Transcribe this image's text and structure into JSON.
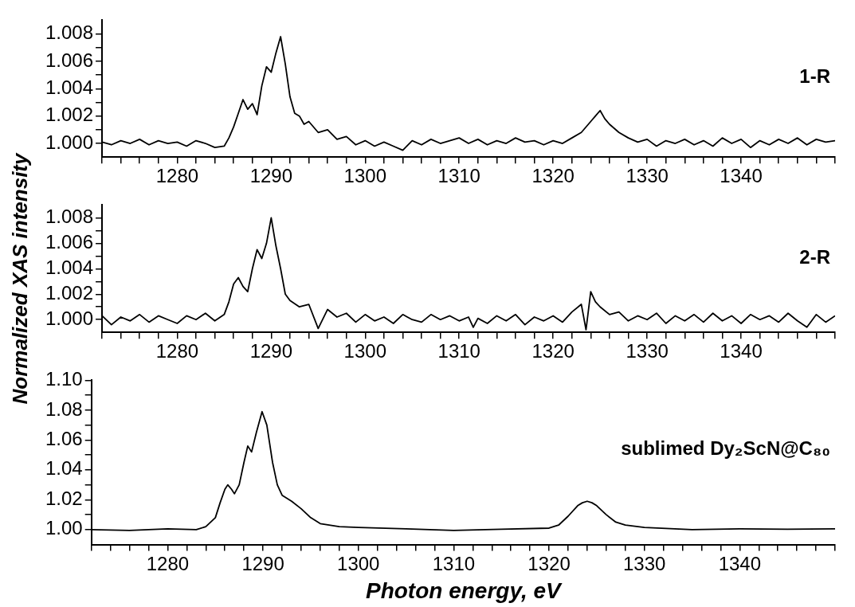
{
  "chart_data": [
    {
      "type": "line",
      "marker": "none",
      "annotations": [
        "1-R"
      ],
      "xlim": [
        1272,
        1350
      ],
      "xticks": [
        {
          "value": 1272,
          "label": null
        },
        {
          "value": 1274,
          "label": null
        },
        {
          "value": 1276,
          "label": null
        },
        {
          "value": 1278,
          "label": null
        },
        1280,
        {
          "value": 1282,
          "label": null
        },
        {
          "value": 1284,
          "label": null
        },
        {
          "value": 1286,
          "label": null
        },
        {
          "value": 1288,
          "label": null
        },
        1290,
        {
          "value": 1292,
          "label": null
        },
        {
          "value": 1294,
          "label": null
        },
        {
          "value": 1296,
          "label": null
        },
        {
          "value": 1298,
          "label": null
        },
        1300,
        {
          "value": 1302,
          "label": null
        },
        {
          "value": 1304,
          "label": null
        },
        {
          "value": 1306,
          "label": null
        },
        {
          "value": 1308,
          "label": null
        },
        1310,
        {
          "value": 1312,
          "label": null
        },
        {
          "value": 1314,
          "label": null
        },
        {
          "value": 1316,
          "label": null
        },
        {
          "value": 1318,
          "label": null
        },
        1320,
        {
          "value": 1322,
          "label": null
        },
        {
          "value": 1324,
          "label": null
        },
        {
          "value": 1326,
          "label": null
        },
        {
          "value": 1328,
          "label": null
        },
        1330,
        {
          "value": 1332,
          "label": null
        },
        {
          "value": 1334,
          "label": null
        },
        {
          "value": 1336,
          "label": null
        },
        {
          "value": 1338,
          "label": null
        },
        1340,
        {
          "value": 1342,
          "label": null
        },
        {
          "value": 1344,
          "label": null
        },
        {
          "value": 1346,
          "label": null
        },
        {
          "value": 1348,
          "label": null
        },
        {
          "value": 1350,
          "label": null
        }
      ],
      "ylim": [
        0.999,
        1.009
      ],
      "yticks": [
        {
          "value": 1.0,
          "label": "1.000"
        },
        {
          "value": 1.001,
          "label": null
        },
        {
          "value": 1.002,
          "label": "1.002"
        },
        {
          "value": 1.003,
          "label": null
        },
        {
          "value": 1.004,
          "label": "1.004"
        },
        {
          "value": 1.005,
          "label": null
        },
        {
          "value": 1.006,
          "label": "1.006"
        },
        {
          "value": 1.007,
          "label": null
        },
        {
          "value": 1.008,
          "label": "1.008"
        }
      ],
      "x": [
        1272,
        1273,
        1274,
        1275,
        1276,
        1277,
        1278,
        1279,
        1280,
        1281,
        1282,
        1283,
        1284,
        1285,
        1285.5,
        1286,
        1286.5,
        1287,
        1287.5,
        1288,
        1288.5,
        1289,
        1289.5,
        1290,
        1290.5,
        1291,
        1291.5,
        1292,
        1292.5,
        1293,
        1293.5,
        1294,
        1295,
        1296,
        1297,
        1298,
        1299,
        1300,
        1301,
        1302,
        1303,
        1304,
        1305,
        1306,
        1307,
        1308,
        1309,
        1310,
        1311,
        1312,
        1313,
        1314,
        1315,
        1316,
        1317,
        1318,
        1319,
        1320,
        1321,
        1322,
        1323,
        1324,
        1324.5,
        1325,
        1325.5,
        1326,
        1327,
        1328,
        1329,
        1330,
        1331,
        1332,
        1333,
        1334,
        1335,
        1336,
        1337,
        1338,
        1339,
        1340,
        1341,
        1342,
        1343,
        1344,
        1345,
        1346,
        1347,
        1348,
        1349,
        1350
      ],
      "series": [
        {
          "color": "#000000",
          "values": [
            1.0001,
            0.9999,
            1.0002,
            1.0,
            1.0003,
            0.9999,
            1.0002,
            1.0,
            1.0001,
            0.9998,
            1.0002,
            1.0,
            0.9997,
            0.9998,
            1.0004,
            1.0012,
            1.0022,
            1.0032,
            1.0025,
            1.0029,
            1.0021,
            1.0042,
            1.0056,
            1.0052,
            1.0066,
            1.0078,
            1.0058,
            1.0034,
            1.0022,
            1.002,
            1.0014,
            1.0016,
            1.0008,
            1.001,
            1.0003,
            1.0005,
            0.9999,
            1.0002,
            0.9998,
            1.0001,
            0.9998,
            0.9995,
            1.0002,
            0.9999,
            1.0003,
            1.0,
            1.0002,
            1.0004,
            1.0,
            1.0003,
            0.9999,
            1.0002,
            1.0,
            1.0004,
            1.0001,
            1.0002,
            0.9999,
            1.0002,
            1.0,
            1.0004,
            1.0008,
            1.0016,
            1.002,
            1.0024,
            1.0018,
            1.0014,
            1.0008,
            1.0004,
            1.0001,
            1.0003,
            0.9998,
            1.0002,
            1.0,
            1.0003,
            0.9999,
            1.0002,
            0.9998,
            1.0004,
            1.0,
            1.0003,
            0.9997,
            1.0002,
            0.9999,
            1.0003,
            1.0,
            1.0004,
            0.9999,
            1.0003,
            1.0001,
            1.0002
          ]
        }
      ]
    },
    {
      "type": "line",
      "marker": "none",
      "annotations": [
        "2-R"
      ],
      "ylabel": "Normalized XAS intensity",
      "xlim": [
        1272,
        1350
      ],
      "xticks": [
        {
          "value": 1272,
          "label": null
        },
        {
          "value": 1274,
          "label": null
        },
        {
          "value": 1276,
          "label": null
        },
        {
          "value": 1278,
          "label": null
        },
        1280,
        {
          "value": 1282,
          "label": null
        },
        {
          "value": 1284,
          "label": null
        },
        {
          "value": 1286,
          "label": null
        },
        {
          "value": 1288,
          "label": null
        },
        1290,
        {
          "value": 1292,
          "label": null
        },
        {
          "value": 1294,
          "label": null
        },
        {
          "value": 1296,
          "label": null
        },
        {
          "value": 1298,
          "label": null
        },
        1300,
        {
          "value": 1302,
          "label": null
        },
        {
          "value": 1304,
          "label": null
        },
        {
          "value": 1306,
          "label": null
        },
        {
          "value": 1308,
          "label": null
        },
        1310,
        {
          "value": 1312,
          "label": null
        },
        {
          "value": 1314,
          "label": null
        },
        {
          "value": 1316,
          "label": null
        },
        {
          "value": 1318,
          "label": null
        },
        1320,
        {
          "value": 1322,
          "label": null
        },
        {
          "value": 1324,
          "label": null
        },
        {
          "value": 1326,
          "label": null
        },
        {
          "value": 1328,
          "label": null
        },
        1330,
        {
          "value": 1332,
          "label": null
        },
        {
          "value": 1334,
          "label": null
        },
        {
          "value": 1336,
          "label": null
        },
        {
          "value": 1338,
          "label": null
        },
        1340,
        {
          "value": 1342,
          "label": null
        },
        {
          "value": 1344,
          "label": null
        },
        {
          "value": 1346,
          "label": null
        },
        {
          "value": 1348,
          "label": null
        },
        {
          "value": 1350,
          "label": null
        }
      ],
      "ylim": [
        0.999,
        1.009
      ],
      "yticks": [
        {
          "value": 1.0,
          "label": "1.000"
        },
        {
          "value": 1.001,
          "label": null
        },
        {
          "value": 1.002,
          "label": "1.002"
        },
        {
          "value": 1.003,
          "label": null
        },
        {
          "value": 1.004,
          "label": "1.004"
        },
        {
          "value": 1.005,
          "label": null
        },
        {
          "value": 1.006,
          "label": "1.006"
        },
        {
          "value": 1.007,
          "label": null
        },
        {
          "value": 1.008,
          "label": "1.008"
        }
      ],
      "x": [
        1272,
        1273,
        1274,
        1275,
        1276,
        1277,
        1278,
        1279,
        1280,
        1281,
        1282,
        1283,
        1284,
        1285,
        1285.5,
        1286,
        1286.5,
        1287,
        1287.5,
        1288,
        1288.5,
        1289,
        1289.5,
        1290,
        1290.5,
        1291,
        1291.5,
        1292,
        1293,
        1294,
        1295,
        1296,
        1297,
        1298,
        1299,
        1300,
        1301,
        1302,
        1303,
        1304,
        1305,
        1306,
        1307,
        1308,
        1309,
        1310,
        1311,
        1311.5,
        1312,
        1313,
        1314,
        1315,
        1316,
        1317,
        1318,
        1319,
        1320,
        1321,
        1322,
        1323,
        1323.5,
        1324,
        1324.5,
        1325,
        1326,
        1327,
        1328,
        1329,
        1330,
        1331,
        1332,
        1333,
        1334,
        1335,
        1336,
        1337,
        1338,
        1339,
        1340,
        1341,
        1342,
        1343,
        1344,
        1345,
        1346,
        1347,
        1348,
        1349,
        1350
      ],
      "series": [
        {
          "color": "#000000",
          "values": [
            1.0003,
            0.9996,
            1.0002,
            0.9999,
            1.0004,
            0.9998,
            1.0003,
            1.0,
            0.9997,
            1.0003,
            1.0,
            1.0005,
            0.9999,
            1.0004,
            1.0014,
            1.0028,
            1.0033,
            1.0026,
            1.0022,
            1.004,
            1.0055,
            1.0048,
            1.006,
            1.008,
            1.0058,
            1.004,
            1.002,
            1.0015,
            1.001,
            1.0012,
            0.9993,
            1.0008,
            1.0002,
            1.0005,
            0.9998,
            1.0004,
            0.9999,
            1.0002,
            0.9997,
            1.0004,
            1.0,
            0.9998,
            1.0004,
            1.0,
            1.0003,
            0.9999,
            1.0002,
            0.9994,
            1.0001,
            0.9997,
            1.0003,
            0.9999,
            1.0004,
            0.9996,
            1.0002,
            0.9999,
            1.0003,
            0.9998,
            1.0006,
            1.0012,
            0.9992,
            1.0022,
            1.0014,
            1.001,
            1.0004,
            1.0006,
            0.9999,
            1.0003,
            1.0,
            1.0005,
            0.9997,
            1.0003,
            0.9999,
            1.0004,
            0.9998,
            1.0005,
            0.9999,
            1.0003,
            0.9997,
            1.0004,
            1.0,
            1.0003,
            0.9998,
            1.0005,
            0.9999,
            0.9994,
            1.0004,
            0.9998,
            1.0003
          ]
        }
      ]
    },
    {
      "type": "line",
      "marker": "none",
      "annotations": [
        "sublimed Dy₂ScN@C₈₀"
      ],
      "xlabel": "Photon energy, eV",
      "xlim": [
        1272,
        1350
      ],
      "xticks": [
        {
          "value": 1272,
          "label": null
        },
        {
          "value": 1274,
          "label": null
        },
        {
          "value": 1276,
          "label": null
        },
        {
          "value": 1278,
          "label": null
        },
        1280,
        {
          "value": 1282,
          "label": null
        },
        {
          "value": 1284,
          "label": null
        },
        {
          "value": 1286,
          "label": null
        },
        {
          "value": 1288,
          "label": null
        },
        1290,
        {
          "value": 1292,
          "label": null
        },
        {
          "value": 1294,
          "label": null
        },
        {
          "value": 1296,
          "label": null
        },
        {
          "value": 1298,
          "label": null
        },
        1300,
        {
          "value": 1302,
          "label": null
        },
        {
          "value": 1304,
          "label": null
        },
        {
          "value": 1306,
          "label": null
        },
        {
          "value": 1308,
          "label": null
        },
        1310,
        {
          "value": 1312,
          "label": null
        },
        {
          "value": 1314,
          "label": null
        },
        {
          "value": 1316,
          "label": null
        },
        {
          "value": 1318,
          "label": null
        },
        1320,
        {
          "value": 1322,
          "label": null
        },
        {
          "value": 1324,
          "label": null
        },
        {
          "value": 1326,
          "label": null
        },
        {
          "value": 1328,
          "label": null
        },
        1330,
        {
          "value": 1332,
          "label": null
        },
        {
          "value": 1334,
          "label": null
        },
        {
          "value": 1336,
          "label": null
        },
        {
          "value": 1338,
          "label": null
        },
        1340,
        {
          "value": 1342,
          "label": null
        },
        {
          "value": 1344,
          "label": null
        },
        {
          "value": 1346,
          "label": null
        },
        {
          "value": 1348,
          "label": null
        },
        {
          "value": 1350,
          "label": null
        }
      ],
      "ylim": [
        0.99,
        1.1
      ],
      "yticks": [
        {
          "value": 1.0,
          "label": "1.00"
        },
        {
          "value": 1.01,
          "label": null
        },
        {
          "value": 1.02,
          "label": "1.02"
        },
        {
          "value": 1.03,
          "label": null
        },
        {
          "value": 1.04,
          "label": "1.04"
        },
        {
          "value": 1.05,
          "label": null
        },
        {
          "value": 1.06,
          "label": "1.06"
        },
        {
          "value": 1.07,
          "label": null
        },
        {
          "value": 1.08,
          "label": "1.08"
        },
        {
          "value": 1.09,
          "label": null
        },
        {
          "value": 1.1,
          "label": "1.10"
        }
      ],
      "x": [
        1272,
        1276,
        1280,
        1283,
        1284,
        1285,
        1285.5,
        1286,
        1286.3,
        1286.7,
        1287,
        1287.5,
        1288,
        1288.4,
        1288.8,
        1289.3,
        1289.9,
        1290.4,
        1291,
        1291.5,
        1292,
        1293,
        1294,
        1295,
        1296,
        1298,
        1300,
        1305,
        1310,
        1315,
        1320,
        1321,
        1322,
        1323,
        1323.5,
        1324,
        1324.5,
        1325,
        1326,
        1327,
        1328,
        1330,
        1335,
        1340,
        1345,
        1350
      ],
      "series": [
        {
          "color": "#000000",
          "values": [
            1.0,
            0.9995,
            1.0005,
            1.0,
            1.002,
            1.008,
            1.018,
            1.027,
            1.03,
            1.027,
            1.024,
            1.03,
            1.045,
            1.056,
            1.052,
            1.065,
            1.079,
            1.07,
            1.045,
            1.03,
            1.023,
            1.019,
            1.014,
            1.008,
            1.004,
            1.002,
            1.0015,
            1.0005,
            0.9995,
            1.0003,
            1.001,
            1.003,
            1.009,
            1.016,
            1.018,
            1.019,
            1.018,
            1.016,
            1.01,
            1.005,
            1.003,
            1.0015,
            1.0,
            1.0005,
            1.0003,
            1.0005
          ]
        }
      ]
    }
  ]
}
